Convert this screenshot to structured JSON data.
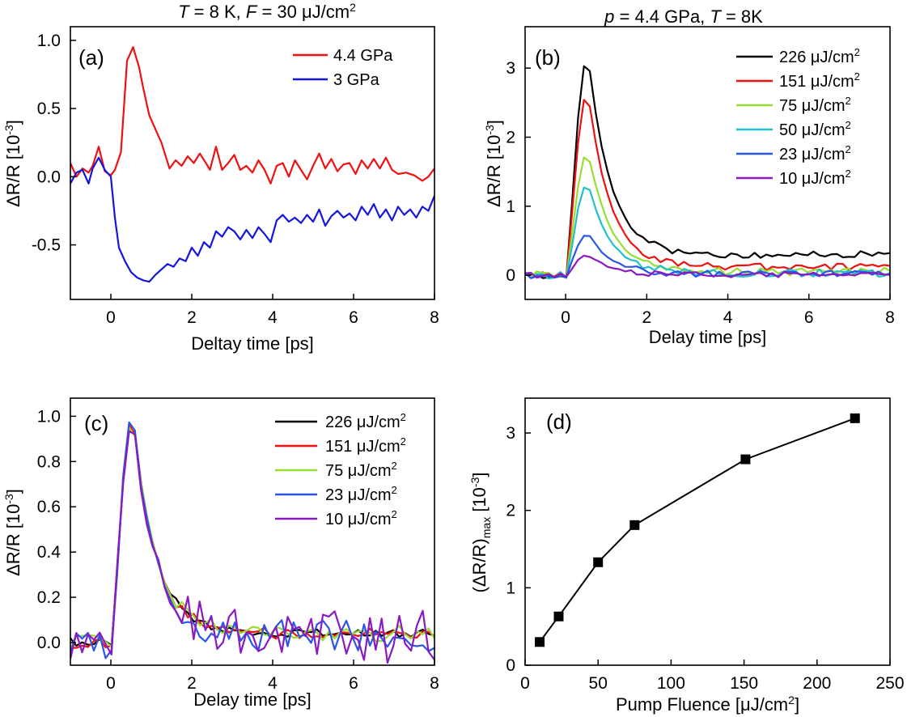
{
  "figure": {
    "header_left": {
      "italic_a": "T",
      "mid": " = 8 K, ",
      "italic_b": "F",
      "tail": " = 30 μJ/cm",
      "sup": "2"
    },
    "header_right": {
      "italic_a": "p",
      "mid": " = 4.4 GPa, ",
      "italic_b": "T",
      "tail": " = 8K",
      "sup": ""
    }
  },
  "chart_data": [
    {
      "type": "line",
      "panel": "(a)",
      "xlabel": "Deltay time [ps]",
      "ylabel": {
        "main": "ΔR/R [10",
        "sup": "-3",
        "tail": "]"
      },
      "xlim": [
        -1,
        8
      ],
      "ylim": [
        -0.9,
        1.1
      ],
      "xticks": [
        0,
        2,
        4,
        6,
        8
      ],
      "yticks": [
        -0.5,
        0.0,
        0.5,
        1.0
      ],
      "ytick_labels": [
        "-0.5",
        "0.0",
        "0.5",
        "1.0"
      ],
      "legend": "top-right",
      "series": [
        {
          "name": "4.4 GPa",
          "color": "#ee1111",
          "points": [
            [
              -1,
              0.1
            ],
            [
              -0.85,
              0.0
            ],
            [
              -0.7,
              0.06
            ],
            [
              -0.55,
              0.03
            ],
            [
              -0.45,
              0.08
            ],
            [
              -0.3,
              0.22
            ],
            [
              -0.15,
              0.04
            ],
            [
              0,
              0.01
            ],
            [
              0.1,
              0.05
            ],
            [
              0.25,
              0.18
            ],
            [
              0.4,
              0.85
            ],
            [
              0.55,
              0.95
            ],
            [
              0.7,
              0.8
            ],
            [
              0.8,
              0.65
            ],
            [
              0.95,
              0.45
            ],
            [
              1.1,
              0.35
            ],
            [
              1.25,
              0.25
            ],
            [
              1.45,
              0.06
            ],
            [
              1.6,
              0.12
            ],
            [
              1.75,
              0.08
            ],
            [
              1.9,
              0.15
            ],
            [
              2.05,
              0.1
            ],
            [
              2.2,
              0.17
            ],
            [
              2.35,
              0.1
            ],
            [
              2.45,
              0.05
            ],
            [
              2.6,
              0.22
            ],
            [
              2.75,
              0.05
            ],
            [
              2.9,
              0.1
            ],
            [
              3.05,
              0.16
            ],
            [
              3.2,
              0.05
            ],
            [
              3.35,
              0.08
            ],
            [
              3.5,
              0.03
            ],
            [
              3.65,
              0.12
            ],
            [
              3.8,
              0.05
            ],
            [
              3.95,
              -0.05
            ],
            [
              4.1,
              0.08
            ],
            [
              4.25,
              0.1
            ],
            [
              4.4,
              0.0
            ],
            [
              4.55,
              0.12
            ],
            [
              4.7,
              0.05
            ],
            [
              4.85,
              -0.02
            ],
            [
              5.0,
              0.08
            ],
            [
              5.15,
              0.17
            ],
            [
              5.3,
              0.06
            ],
            [
              5.45,
              0.13
            ],
            [
              5.6,
              0.04
            ],
            [
              5.75,
              0.09
            ],
            [
              5.9,
              0.1
            ],
            [
              6.05,
              0.02
            ],
            [
              6.2,
              0.12
            ],
            [
              6.35,
              0.06
            ],
            [
              6.5,
              0.13
            ],
            [
              6.65,
              0.06
            ],
            [
              6.8,
              0.14
            ],
            [
              6.95,
              0.05
            ],
            [
              7.1,
              0.02
            ],
            [
              7.3,
              0.03
            ],
            [
              7.5,
              0.01
            ],
            [
              7.7,
              -0.03
            ],
            [
              7.85,
              0.0
            ],
            [
              8,
              0.06
            ]
          ]
        },
        {
          "name": "3 GPa",
          "color": "#1515e0",
          "points": [
            [
              -1,
              -0.05
            ],
            [
              -0.85,
              0.03
            ],
            [
              -0.7,
              0.05
            ],
            [
              -0.55,
              -0.05
            ],
            [
              -0.45,
              0.06
            ],
            [
              -0.3,
              0.14
            ],
            [
              -0.15,
              0.05
            ],
            [
              0,
              0.0
            ],
            [
              0.1,
              -0.3
            ],
            [
              0.2,
              -0.52
            ],
            [
              0.35,
              -0.62
            ],
            [
              0.5,
              -0.7
            ],
            [
              0.65,
              -0.74
            ],
            [
              0.8,
              -0.76
            ],
            [
              0.95,
              -0.77
            ],
            [
              1.1,
              -0.72
            ],
            [
              1.25,
              -0.68
            ],
            [
              1.4,
              -0.64
            ],
            [
              1.55,
              -0.66
            ],
            [
              1.7,
              -0.6
            ],
            [
              1.85,
              -0.62
            ],
            [
              2.0,
              -0.52
            ],
            [
              2.15,
              -0.58
            ],
            [
              2.3,
              -0.48
            ],
            [
              2.45,
              -0.52
            ],
            [
              2.6,
              -0.4
            ],
            [
              2.75,
              -0.44
            ],
            [
              2.9,
              -0.37
            ],
            [
              3.05,
              -0.4
            ],
            [
              3.2,
              -0.46
            ],
            [
              3.35,
              -0.39
            ],
            [
              3.5,
              -0.45
            ],
            [
              3.65,
              -0.37
            ],
            [
              3.8,
              -0.42
            ],
            [
              3.95,
              -0.48
            ],
            [
              4.1,
              -0.32
            ],
            [
              4.25,
              -0.28
            ],
            [
              4.4,
              -0.33
            ],
            [
              4.55,
              -0.3
            ],
            [
              4.7,
              -0.34
            ],
            [
              4.85,
              -0.28
            ],
            [
              5.0,
              -0.33
            ],
            [
              5.15,
              -0.24
            ],
            [
              5.3,
              -0.36
            ],
            [
              5.45,
              -0.29
            ],
            [
              5.6,
              -0.25
            ],
            [
              5.75,
              -0.3
            ],
            [
              5.9,
              -0.27
            ],
            [
              6.05,
              -0.32
            ],
            [
              6.2,
              -0.22
            ],
            [
              6.35,
              -0.28
            ],
            [
              6.5,
              -0.2
            ],
            [
              6.65,
              -0.3
            ],
            [
              6.8,
              -0.24
            ],
            [
              6.95,
              -0.32
            ],
            [
              7.1,
              -0.22
            ],
            [
              7.25,
              -0.28
            ],
            [
              7.4,
              -0.24
            ],
            [
              7.55,
              -0.3
            ],
            [
              7.7,
              -0.22
            ],
            [
              7.85,
              -0.25
            ],
            [
              8,
              -0.14
            ]
          ]
        }
      ]
    },
    {
      "type": "line",
      "panel": "(b)",
      "xlabel": "Delay time [ps]",
      "ylabel": {
        "main": "ΔR/R [10",
        "sup": "-3",
        "tail": "]"
      },
      "xlim": [
        -1,
        8
      ],
      "ylim": [
        -0.35,
        3.6
      ],
      "xticks": [
        0,
        2,
        4,
        6,
        8
      ],
      "yticks": [
        0,
        1,
        2,
        3
      ],
      "ytick_labels": [
        "0",
        "1",
        "2",
        "3"
      ],
      "legend": "top-right",
      "pulse": {
        "x0": -1,
        "x1": 8,
        "t_on": 0.05,
        "t_peak": 0.55,
        "rise_w": 0.15,
        "fall_w": 0.55
      },
      "series": [
        {
          "name": "226 μJ/cm²",
          "color": "#000000",
          "peak": 3.19,
          "tail": 0.3,
          "noise": 0.05
        },
        {
          "name": "151 μJ/cm²",
          "color": "#ee1111",
          "peak": 2.66,
          "tail": 0.12,
          "noise": 0.05
        },
        {
          "name": "75 μJ/cm²",
          "color": "#99dd33",
          "peak": 1.81,
          "tail": 0.05,
          "noise": 0.06
        },
        {
          "name": "50 μJ/cm²",
          "color": "#22c0c8",
          "peak": 1.33,
          "tail": 0.03,
          "noise": 0.06
        },
        {
          "name": "23 μJ/cm²",
          "color": "#2a55e8",
          "peak": 0.62,
          "tail": 0.02,
          "noise": 0.05
        },
        {
          "name": "10 μJ/cm²",
          "color": "#8a1ac0",
          "peak": 0.3,
          "tail": 0.01,
          "noise": 0.04
        }
      ]
    },
    {
      "type": "line",
      "panel": "(c)",
      "xlabel": "Delay time [ps]",
      "ylabel": {
        "main": "ΔR/R [10",
        "sup": "-3",
        "tail": "]"
      },
      "xlim": [
        -1,
        8
      ],
      "ylim": [
        -0.1,
        1.08
      ],
      "xticks": [
        0,
        2,
        4,
        6,
        8
      ],
      "yticks": [
        0.0,
        0.2,
        0.4,
        0.6,
        0.8,
        1.0
      ],
      "ytick_labels": [
        "0.0",
        "0.2",
        "0.4",
        "0.6",
        "0.8",
        "1.0"
      ],
      "legend": "top-right",
      "pulse": {
        "x0": -1,
        "x1": 8,
        "t_on": 0.05,
        "t_peak": 0.55,
        "rise_w": 0.15,
        "fall_w": 0.55
      },
      "series": [
        {
          "name": "226 μJ/cm²",
          "color": "#000000",
          "peak": 1.0,
          "tail": 0.04,
          "noise": 0.02
        },
        {
          "name": "151 μJ/cm²",
          "color": "#ee1111",
          "peak": 1.0,
          "tail": 0.04,
          "noise": 0.025
        },
        {
          "name": "75 μJ/cm²",
          "color": "#99dd33",
          "peak": 1.0,
          "tail": 0.04,
          "noise": 0.035
        },
        {
          "name": "23 μJ/cm²",
          "color": "#2a55e8",
          "peak": 1.0,
          "tail": 0.03,
          "noise": 0.07
        },
        {
          "name": "10 μJ/cm²",
          "color": "#8a1ac0",
          "peak": 1.0,
          "tail": 0.03,
          "noise": 0.12
        }
      ]
    },
    {
      "type": "line",
      "panel": "(d)",
      "xlabel": {
        "main": "Pump Fluence [μJ/cm",
        "sup": "2",
        "tail": "]"
      },
      "ylabel": {
        "main": "(ΔR/R)",
        "sub": "max",
        "tail2": " [10",
        "sup": "-3",
        "tail": "]"
      },
      "xlim": [
        0,
        250
      ],
      "ylim": [
        0,
        3.45
      ],
      "xticks": [
        0,
        50,
        100,
        150,
        200,
        250
      ],
      "yticks": [
        0,
        1,
        2,
        3
      ],
      "ytick_labels": [
        "0",
        "1",
        "2",
        "3"
      ],
      "markers": "square",
      "x": [
        10,
        23,
        50,
        75,
        151,
        226
      ],
      "y": [
        0.3,
        0.63,
        1.33,
        1.81,
        2.66,
        3.19
      ]
    }
  ]
}
